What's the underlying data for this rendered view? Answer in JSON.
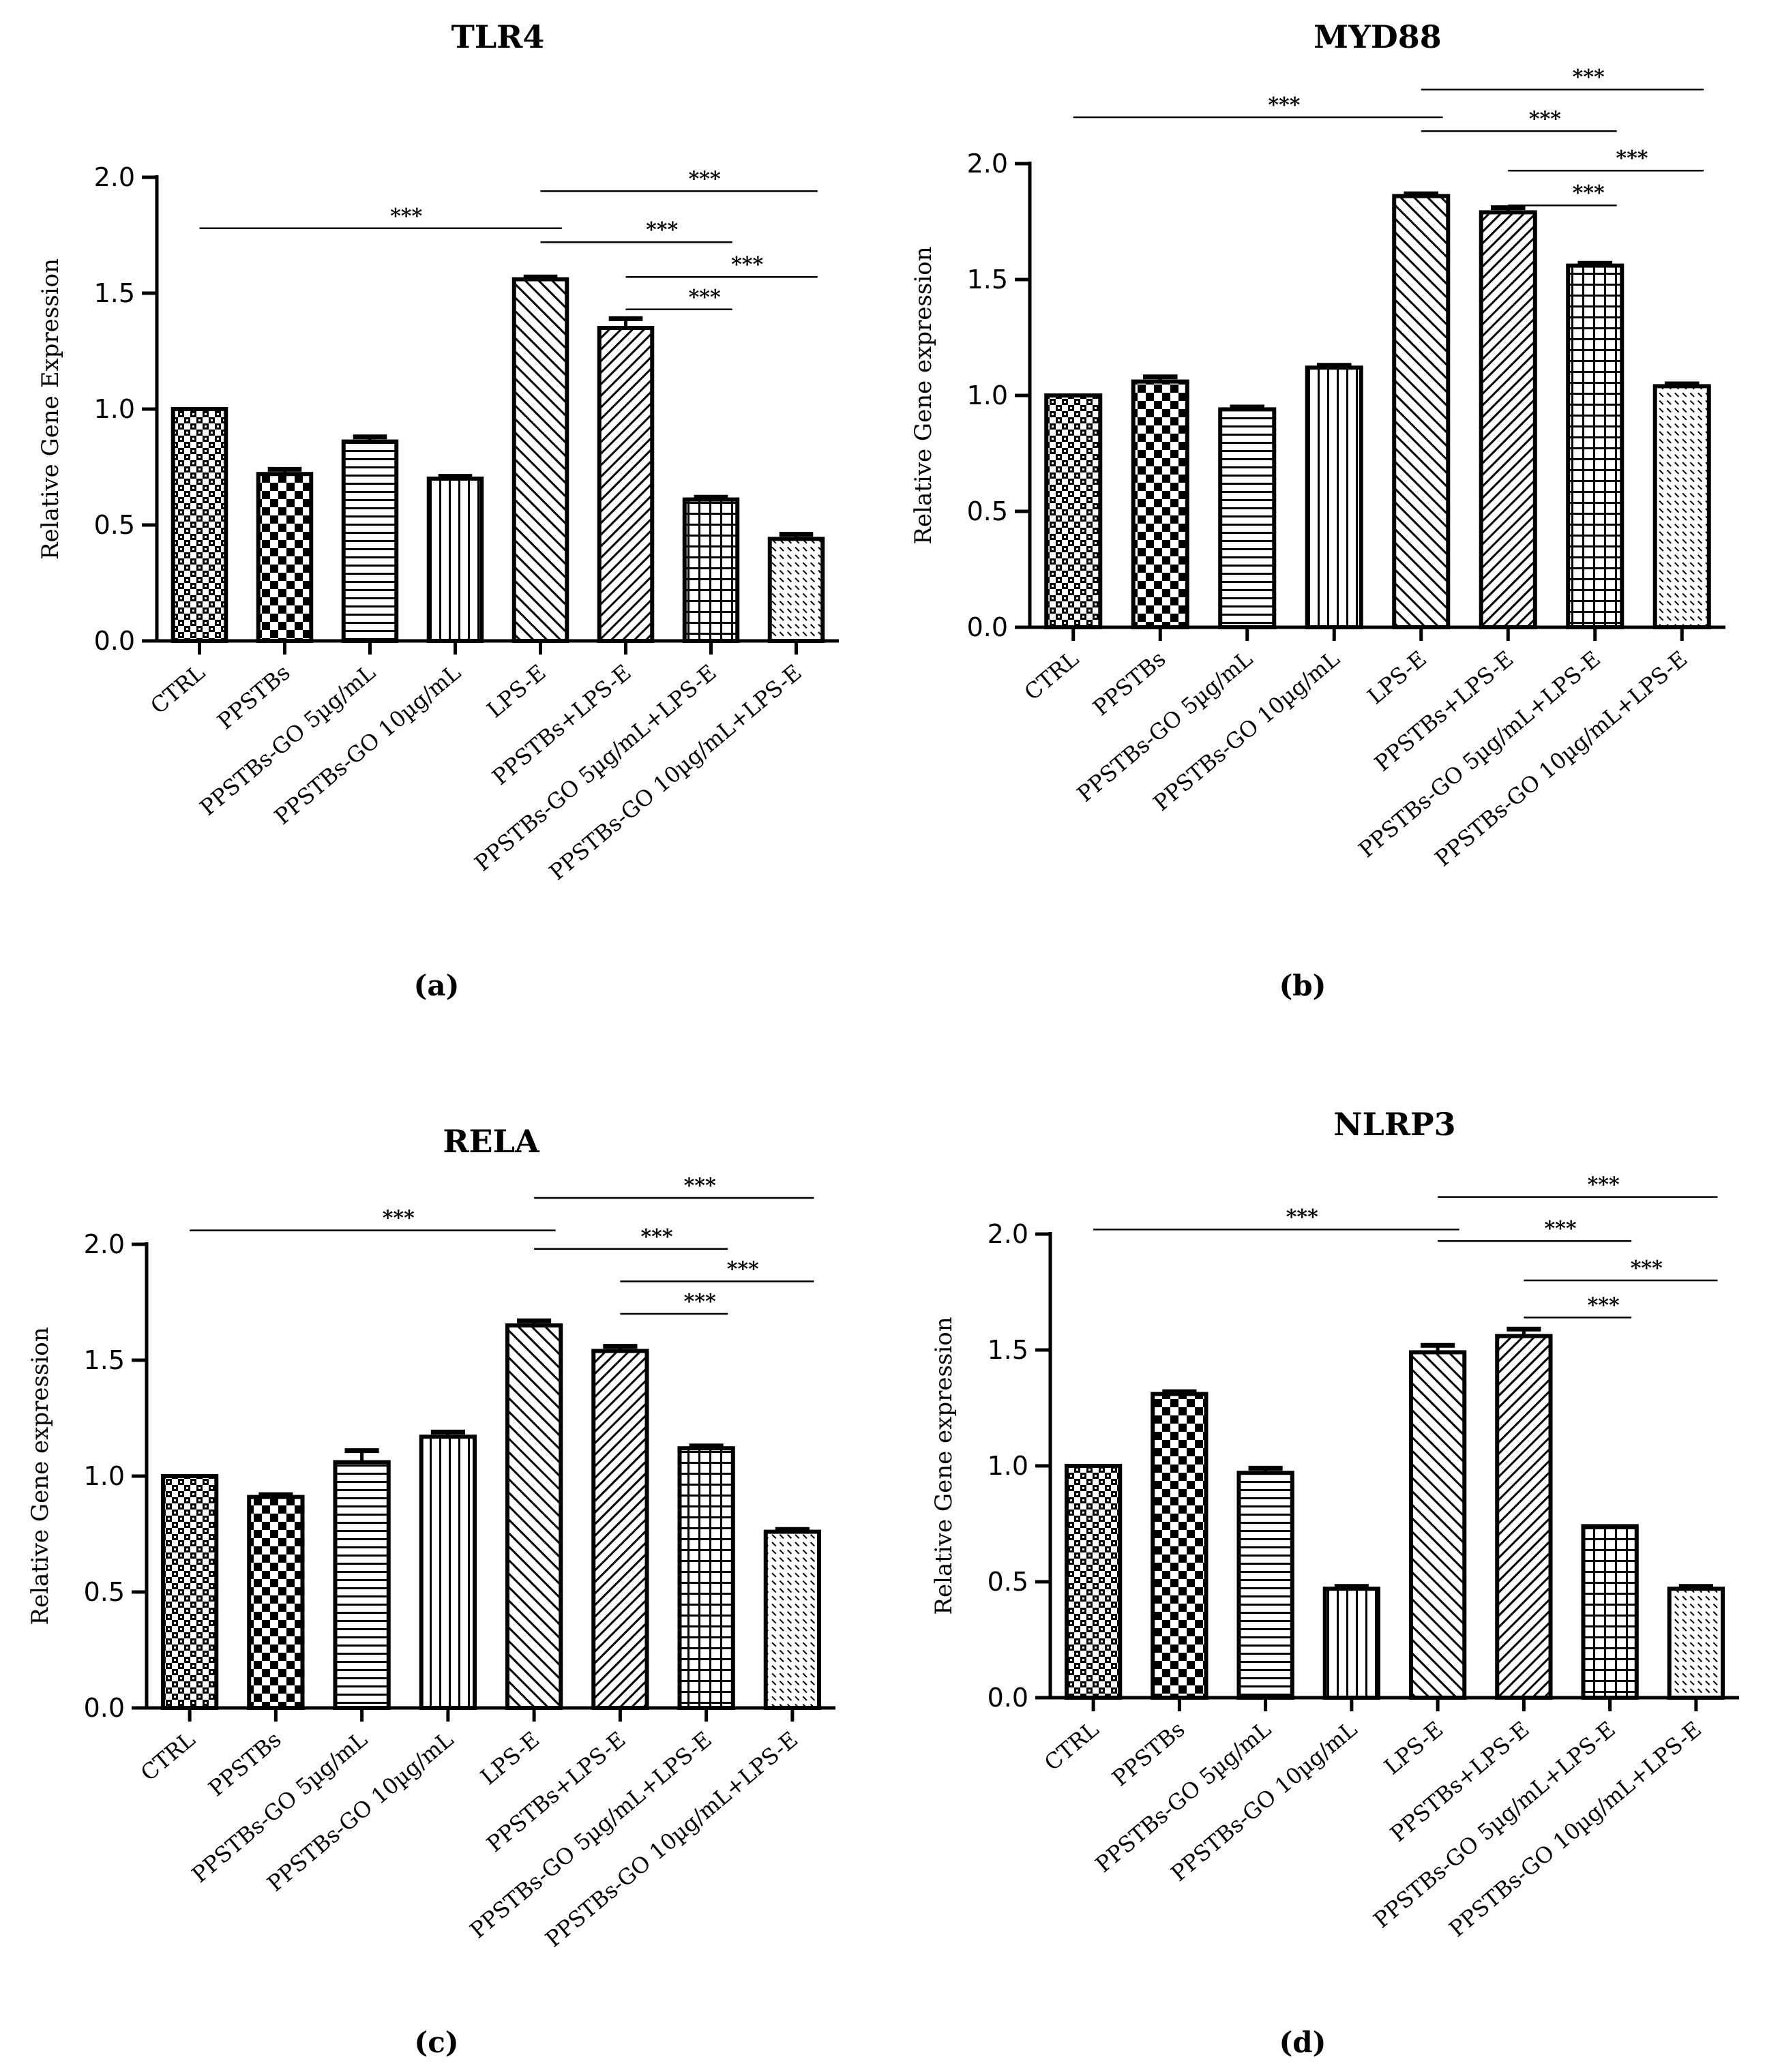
{
  "figure": {
    "panel_letters": [
      "(a)",
      "(b)",
      "(c)",
      "(d)"
    ]
  },
  "chart_data": [
    {
      "type": "bar",
      "title": "TLR4",
      "xlabel": "",
      "ylabel": "Relative Gene Expression",
      "ylim": [
        0,
        2.0
      ],
      "yticks": [
        "0.0",
        "0.5",
        "1.0",
        "1.5",
        "2.0"
      ],
      "categories": [
        "CTRL",
        "PPSTBs",
        "PPSTBs-GO 5µg/mL",
        "PPSTBs-GO 10µg/mL",
        "LPS-E",
        "PPSTBs+LPS-E",
        "PPSTBs-GO 5µg/mL+LPS-E",
        "PPSTBs-GO 10µg/mL+LPS-E"
      ],
      "values": [
        1.0,
        0.72,
        0.86,
        0.7,
        1.56,
        1.35,
        0.61,
        0.44
      ],
      "errors": [
        0.0,
        0.02,
        0.02,
        0.01,
        0.01,
        0.04,
        0.01,
        0.02
      ],
      "significance": [
        {
          "label": "***",
          "from": 0,
          "to": 4,
          "y": 1.78
        },
        {
          "label": "***",
          "from": 4,
          "to": 7,
          "y": 1.94
        },
        {
          "label": "***",
          "from": 4,
          "to": 6,
          "y": 1.72
        },
        {
          "label": "***",
          "from": 5,
          "to": 7,
          "y": 1.57
        },
        {
          "label": "***",
          "from": 5,
          "to": 6,
          "y": 1.43
        }
      ]
    },
    {
      "type": "bar",
      "title": "MYD88",
      "xlabel": "",
      "ylabel": "Relative Gene expression",
      "ylim": [
        0,
        2.0
      ],
      "yticks": [
        "0.0",
        "0.5",
        "1.0",
        "1.5",
        "2.0"
      ],
      "categories": [
        "CTRL",
        "PPSTBs",
        "PPSTBs-GO 5µg/mL",
        "PPSTBs-GO 10µg/mL",
        "LPS-E",
        "PPSTBs+LPS-E",
        "PPSTBs-GO 5µg/mL+LPS-E",
        "PPSTBs-GO 10µg/mL+LPS-E"
      ],
      "values": [
        1.0,
        1.06,
        0.94,
        1.12,
        1.86,
        1.79,
        1.56,
        1.04
      ],
      "errors": [
        0.0,
        0.02,
        0.01,
        0.01,
        0.01,
        0.02,
        0.01,
        0.01
      ],
      "significance": [
        {
          "label": "***",
          "from": 0,
          "to": 4,
          "y": 2.2
        },
        {
          "label": "***",
          "from": 4,
          "to": 7,
          "y": 2.32
        },
        {
          "label": "***",
          "from": 4,
          "to": 6,
          "y": 2.14
        },
        {
          "label": "***",
          "from": 5,
          "to": 7,
          "y": 1.97
        },
        {
          "label": "***",
          "from": 5,
          "to": 6,
          "y": 1.82
        }
      ]
    },
    {
      "type": "bar",
      "title": "RELA",
      "xlabel": "",
      "ylabel": "Relative Gene expression",
      "ylim": [
        0,
        2.0
      ],
      "yticks": [
        "0.0",
        "0.5",
        "1.0",
        "1.5",
        "2.0"
      ],
      "categories": [
        "CTRL",
        "PPSTBs",
        "PPSTBs-GO 5µg/mL",
        "PPSTBs-GO 10µg/mL",
        "LPS-E",
        "PPSTBs+LPS-E",
        "PPSTBs-GO 5µg/mL+LPS-E",
        "PPSTBs-GO 10µg/mL+LPS-E"
      ],
      "values": [
        1.0,
        0.91,
        1.06,
        1.17,
        1.65,
        1.54,
        1.12,
        0.76
      ],
      "errors": [
        0.0,
        0.01,
        0.05,
        0.02,
        0.02,
        0.02,
        0.01,
        0.01
      ],
      "significance": [
        {
          "label": "***",
          "from": 0,
          "to": 4,
          "y": 2.06
        },
        {
          "label": "***",
          "from": 4,
          "to": 7,
          "y": 2.2
        },
        {
          "label": "***",
          "from": 4,
          "to": 6,
          "y": 1.98
        },
        {
          "label": "***",
          "from": 5,
          "to": 7,
          "y": 1.84
        },
        {
          "label": "***",
          "from": 5,
          "to": 6,
          "y": 1.7
        }
      ]
    },
    {
      "type": "bar",
      "title": "NLRP3",
      "xlabel": "",
      "ylabel": "Relative Gene expression",
      "ylim": [
        0,
        2.0
      ],
      "yticks": [
        "0.0",
        "0.5",
        "1.0",
        "1.5",
        "2.0"
      ],
      "categories": [
        "CTRL",
        "PPSTBs",
        "PPSTBs-GO 5µg/mL",
        "PPSTBs-GO 10µg/mL",
        "LPS-E",
        "PPSTBs+LPS-E",
        "PPSTBs-GO 5µg/mL+LPS-E",
        "PPSTBs-GO 10µg/mL+LPS-E"
      ],
      "values": [
        1.0,
        1.31,
        0.97,
        0.47,
        1.49,
        1.56,
        0.74,
        0.47
      ],
      "errors": [
        0.0,
        0.01,
        0.02,
        0.01,
        0.03,
        0.03,
        0.0,
        0.01
      ],
      "significance": [
        {
          "label": "***",
          "from": 0,
          "to": 4,
          "y": 2.02
        },
        {
          "label": "***",
          "from": 4,
          "to": 7,
          "y": 2.16
        },
        {
          "label": "***",
          "from": 4,
          "to": 6,
          "y": 1.97
        },
        {
          "label": "***",
          "from": 5,
          "to": 7,
          "y": 1.8
        },
        {
          "label": "***",
          "from": 5,
          "to": 6,
          "y": 1.64
        }
      ]
    }
  ]
}
